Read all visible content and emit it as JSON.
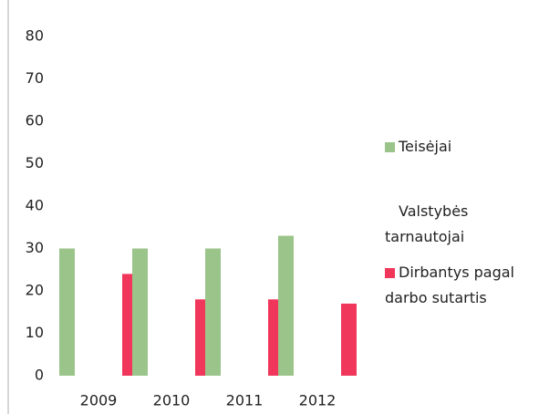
{
  "chart_data": {
    "type": "bar",
    "categories": [
      "2009",
      "2010",
      "2011",
      "2012"
    ],
    "series": [
      {
        "name": "Teisėjai",
        "color": "#9bc48a",
        "values": [
          30,
          30,
          30,
          33
        ]
      },
      {
        "name": "Valstybės tarnautojai",
        "color": "#ffffff",
        "values": [
          null,
          null,
          null,
          null
        ]
      },
      {
        "name": "Dirbantys pagal darbo sutartis",
        "color": "#f0365a",
        "values": [
          24,
          18,
          18,
          17
        ]
      }
    ],
    "ylim": [
      0,
      80
    ],
    "yticks": [
      0,
      10,
      20,
      30,
      40,
      50,
      60,
      70,
      80
    ],
    "grid": false,
    "legend": "right"
  }
}
